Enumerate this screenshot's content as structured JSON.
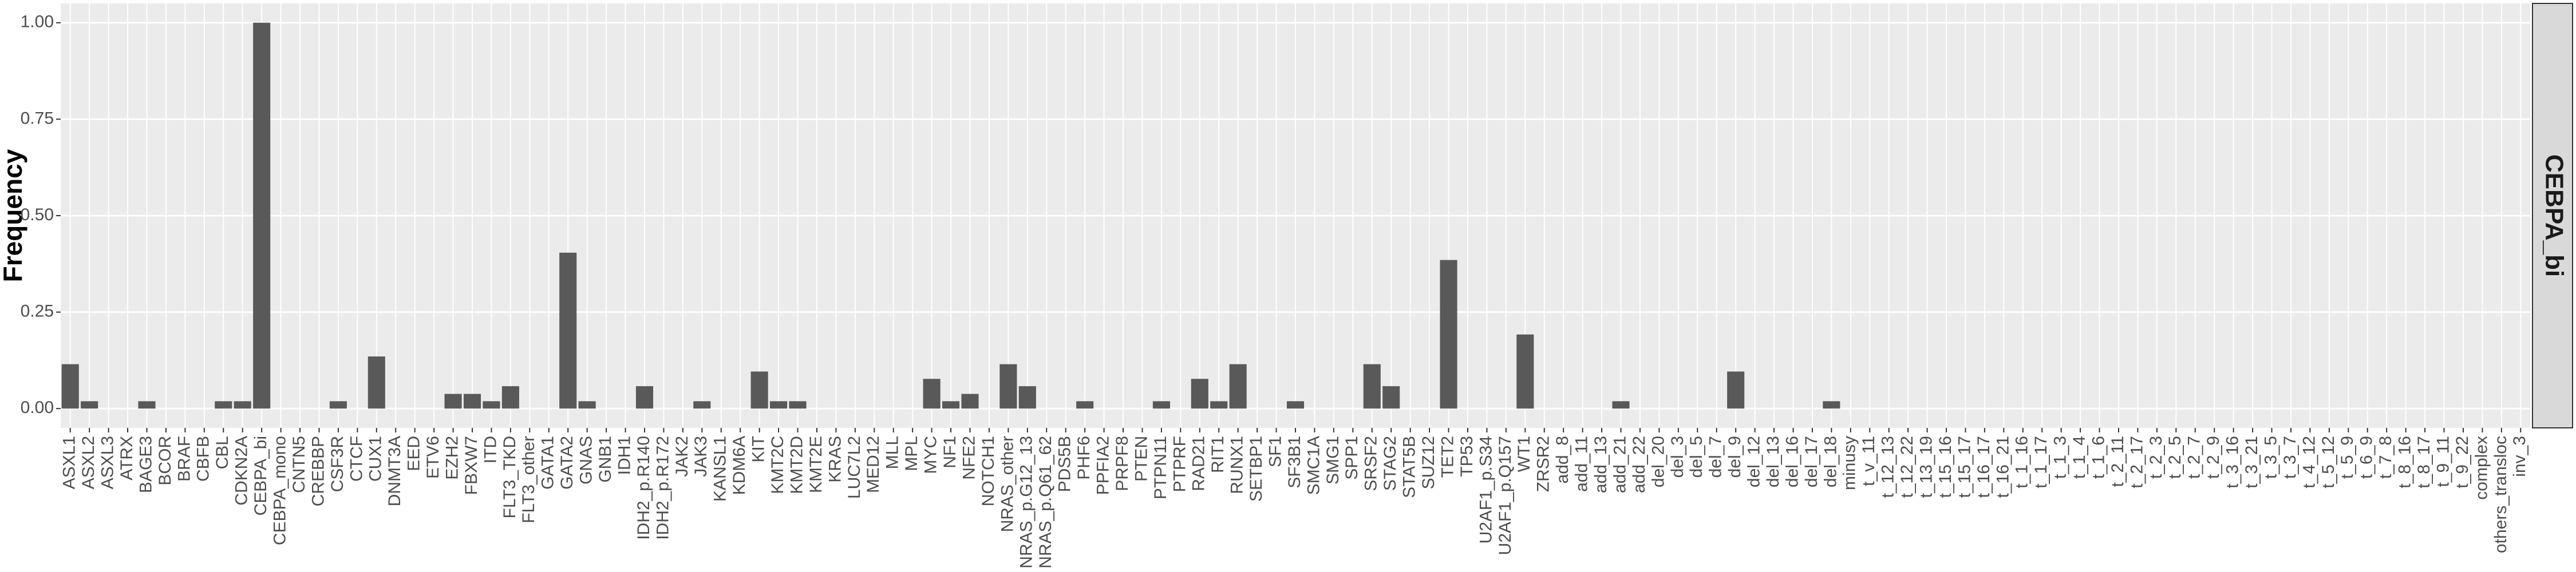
{
  "chart_data": {
    "type": "bar",
    "y_label": "Frequency",
    "facet": "CEBPA_bi",
    "color": "#595959",
    "grid": true,
    "ylim": [
      -0.05,
      1.05
    ],
    "yticks": [
      {
        "value": 0,
        "label": "0.00"
      },
      {
        "value": 0.25,
        "label": "0.25"
      },
      {
        "value": 0.5,
        "label": "0.50"
      },
      {
        "value": 0.75,
        "label": "0.75"
      },
      {
        "value": 1,
        "label": "1.00"
      }
    ],
    "categories": [
      "ASXL1",
      "ASXL2",
      "ASXL3",
      "ATRX",
      "BAGE3",
      "BCOR",
      "BRAF",
      "CBFB",
      "CBL",
      "CDKN2A",
      "CEBPA_bi",
      "CEBPA_mono",
      "CNTN5",
      "CREBBP",
      "CSF3R",
      "CTCF",
      "CUX1",
      "DNMT3A",
      "EED",
      "ETV6",
      "EZH2",
      "FBXW7",
      "ITD",
      "FLT3_TKD",
      "FLT3_other",
      "GATA1",
      "GATA2",
      "GNAS",
      "GNB1",
      "IDH1",
      "IDH2_p.R140",
      "IDH2_p.R172",
      "JAK2",
      "JAK3",
      "KANSL1",
      "KDM6A",
      "KIT",
      "KMT2C",
      "KMT2D",
      "KMT2E",
      "KRAS",
      "LUC7L2",
      "MED12",
      "MLL",
      "MPL",
      "MYC",
      "NF1",
      "NFE2",
      "NOTCH1",
      "NRAS_other",
      "NRAS_p.G12_13",
      "NRAS_p.Q61_62",
      "PDS5B",
      "PHF6",
      "PPFIA2",
      "PRPF8",
      "PTEN",
      "PTPN11",
      "PTPRF",
      "RAD21",
      "RIT1",
      "RUNX1",
      "SETBP1",
      "SF1",
      "SF3B1",
      "SMC1A",
      "SMG1",
      "SPP1",
      "SRSF2",
      "STAG2",
      "STAT5B",
      "SUZ12",
      "TET2",
      "TP53",
      "U2AF1_p.S34",
      "U2AF1_p.Q157",
      "WT1",
      "ZRSR2",
      "add_8",
      "add_11",
      "add_13",
      "add_21",
      "add_22",
      "del_20",
      "del_3",
      "del_5",
      "del_7",
      "del_9",
      "del_12",
      "del_13",
      "del_16",
      "del_17",
      "del_18",
      "minusy",
      "t_v_11",
      "t_12_13",
      "t_12_22",
      "t_13_19",
      "t_15_16",
      "t_15_17",
      "t_16_17",
      "t_16_21",
      "t_1_16",
      "t_1_17",
      "t_1_3",
      "t_1_4",
      "t_1_6",
      "t_2_11",
      "t_2_17",
      "t_2_3",
      "t_2_5",
      "t_2_7",
      "t_2_9",
      "t_3_16",
      "t_3_21",
      "t_3_5",
      "t_3_7",
      "t_4_12",
      "t_5_12",
      "t_5_9",
      "t_6_9",
      "t_7_8",
      "t_8_16",
      "t_8_17",
      "t_9_11",
      "t_9_22",
      "complex",
      "others_transloc",
      "inv_3"
    ],
    "values": [
      0.115,
      0.019,
      0,
      0,
      0.019,
      0,
      0,
      0,
      0.019,
      0.019,
      1.0,
      0,
      0,
      0,
      0.019,
      0,
      0.135,
      0,
      0,
      0,
      0.038,
      0.038,
      0.019,
      0.058,
      0,
      0,
      0.404,
      0.019,
      0,
      0,
      0.058,
      0,
      0,
      0.019,
      0,
      0,
      0.096,
      0.019,
      0.019,
      0,
      0,
      0,
      0,
      0,
      0,
      0.077,
      0.019,
      0.038,
      0,
      0.115,
      0.058,
      0,
      0,
      0.019,
      0,
      0,
      0,
      0.019,
      0,
      0.077,
      0.019,
      0.115,
      0,
      0,
      0.019,
      0,
      0,
      0,
      0.115,
      0.058,
      0,
      0,
      0.385,
      0,
      0,
      0,
      0.192,
      0,
      0,
      0,
      0,
      0.019,
      0,
      0,
      0,
      0,
      0,
      0.096,
      0,
      0,
      0,
      0,
      0.019,
      0,
      0,
      0,
      0,
      0,
      0,
      0,
      0,
      0,
      0,
      0,
      0,
      0,
      0,
      0,
      0,
      0,
      0,
      0,
      0,
      0,
      0,
      0,
      0,
      0,
      0,
      0,
      0,
      0,
      0,
      0,
      0,
      0,
      0,
      0,
      0
    ]
  }
}
